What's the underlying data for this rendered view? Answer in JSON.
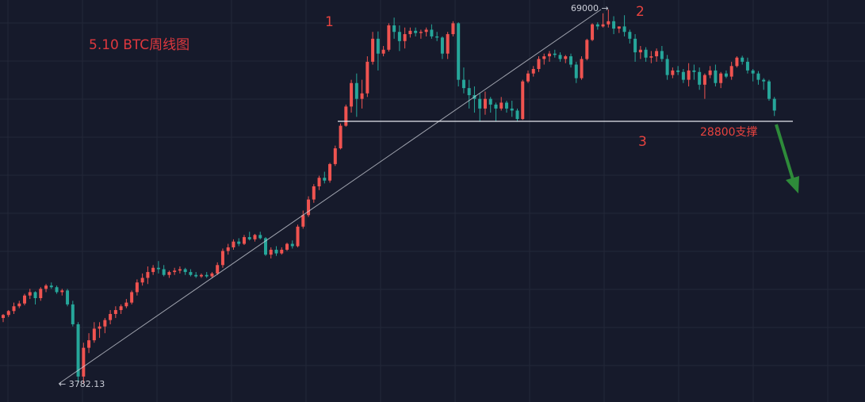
{
  "title": "5.10 BTC周线图",
  "annotations": {
    "wave1": "1",
    "wave2": "2",
    "wave3": "3",
    "support_text": "28800支撑",
    "high_label": "69000 →",
    "low_label": "← 3782.13"
  },
  "colors": {
    "background": "#161a2b",
    "grid": "#232838",
    "up": "#ef5350",
    "down": "#26a69a",
    "annotation": "#e8433f",
    "arrow": "#2e8b3a",
    "lines": "#cfd2db"
  },
  "chart_data": {
    "type": "candlestick",
    "title": "5.10 BTC周线图",
    "ylim": [
      3000,
      69500
    ],
    "grid": true,
    "candles": [
      [
        6300,
        6500,
        6100,
        6450
      ],
      [
        6450,
        6700,
        6350,
        6650
      ],
      [
        6650,
        7100,
        6500,
        6900
      ],
      [
        6900,
        7200,
        6800,
        7050
      ],
      [
        7050,
        7600,
        6950,
        7500
      ],
      [
        7500,
        7900,
        7300,
        7700
      ],
      [
        7700,
        7750,
        7000,
        7350
      ],
      [
        7350,
        8000,
        7200,
        7900
      ],
      [
        7900,
        8200,
        7700,
        8100
      ],
      [
        8100,
        8300,
        7900,
        8000
      ],
      [
        8000,
        8100,
        7600,
        7700
      ],
      [
        7700,
        7900,
        7500,
        7800
      ],
      [
        7800,
        7900,
        6900,
        7000
      ],
      [
        7000,
        7200,
        5900,
        6000
      ],
      [
        6000,
        6100,
        3800,
        4000
      ],
      [
        4000,
        5200,
        3782.13,
        5000
      ],
      [
        5000,
        5600,
        4800,
        5300
      ],
      [
        5300,
        6100,
        5200,
        5800
      ],
      [
        5800,
        6100,
        5400,
        5900
      ],
      [
        5900,
        6300,
        5600,
        6200
      ],
      [
        6200,
        6700,
        6000,
        6500
      ],
      [
        6500,
        6900,
        6300,
        6700
      ],
      [
        6700,
        7000,
        6500,
        6900
      ],
      [
        6900,
        7300,
        6800,
        7100
      ],
      [
        7100,
        7800,
        7000,
        7700
      ],
      [
        7700,
        8500,
        7500,
        8300
      ],
      [
        8300,
        8900,
        8100,
        8600
      ],
      [
        8600,
        9400,
        8200,
        9000
      ],
      [
        9000,
        9500,
        8800,
        9300
      ],
      [
        9300,
        9800,
        8900,
        9200
      ],
      [
        9200,
        9500,
        8700,
        8800
      ],
      [
        8800,
        9100,
        8600,
        9000
      ],
      [
        9000,
        9300,
        8800,
        9100
      ],
      [
        9100,
        9400,
        8900,
        9200
      ],
      [
        9200,
        9300,
        8800,
        9000
      ],
      [
        9000,
        9200,
        8700,
        8800
      ],
      [
        8800,
        9000,
        8600,
        8700
      ],
      [
        8700,
        8900,
        8600,
        8800
      ],
      [
        8800,
        9000,
        8600,
        8700
      ],
      [
        8700,
        9000,
        8600,
        8900
      ],
      [
        8900,
        9700,
        8800,
        9500
      ],
      [
        9500,
        10800,
        9300,
        10600
      ],
      [
        10600,
        11200,
        10300,
        10900
      ],
      [
        10900,
        11600,
        10700,
        11400
      ],
      [
        11400,
        11700,
        11000,
        11200
      ],
      [
        11200,
        12000,
        11100,
        11800
      ],
      [
        11800,
        12300,
        11500,
        11600
      ],
      [
        11600,
        12100,
        11400,
        12000
      ],
      [
        12000,
        12300,
        11600,
        11700
      ],
      [
        11700,
        11800,
        10200,
        10300
      ],
      [
        10300,
        10900,
        10000,
        10700
      ],
      [
        10700,
        11000,
        10200,
        10400
      ],
      [
        10400,
        10900,
        10300,
        10700
      ],
      [
        10700,
        11300,
        10600,
        11200
      ],
      [
        11200,
        11500,
        10800,
        11000
      ],
      [
        11000,
        13000,
        10900,
        12800
      ],
      [
        12800,
        14500,
        12600,
        14000
      ],
      [
        14000,
        16200,
        13800,
        15800
      ],
      [
        15800,
        17800,
        15400,
        17500
      ],
      [
        17500,
        19000,
        17000,
        18700
      ],
      [
        18700,
        19600,
        17900,
        18300
      ],
      [
        18300,
        21000,
        18000,
        20800
      ],
      [
        20800,
        24000,
        20500,
        23500
      ],
      [
        23500,
        28500,
        23300,
        28000
      ],
      [
        28000,
        33000,
        27800,
        32500
      ],
      [
        32500,
        40000,
        31000,
        39000
      ],
      [
        39000,
        42000,
        30000,
        34500
      ],
      [
        34500,
        40000,
        32000,
        36000
      ],
      [
        36000,
        48000,
        35000,
        46000
      ],
      [
        46000,
        58000,
        45000,
        55000
      ],
      [
        55000,
        58200,
        43000,
        49000
      ],
      [
        49000,
        52000,
        48000,
        50500
      ],
      [
        50500,
        62000,
        49800,
        61000
      ],
      [
        61000,
        64800,
        55000,
        58000
      ],
      [
        58000,
        61000,
        50000,
        54000
      ],
      [
        54000,
        60000,
        51000,
        57000
      ],
      [
        57000,
        60000,
        55500,
        58500
      ],
      [
        58500,
        60000,
        56000,
        57500
      ],
      [
        57500,
        59000,
        55000,
        58000
      ],
      [
        58000,
        60000,
        56000,
        59000
      ],
      [
        59000,
        61500,
        55000,
        56000
      ],
      [
        56000,
        58000,
        54000,
        55500
      ],
      [
        55500,
        56000,
        47000,
        49000
      ],
      [
        49000,
        58000,
        47000,
        57000
      ],
      [
        57000,
        63000,
        56000,
        62000
      ],
      [
        62000,
        62500,
        38000,
        40000
      ],
      [
        40000,
        44000,
        36000,
        37500
      ],
      [
        37500,
        40000,
        32000,
        35500
      ],
      [
        35500,
        38000,
        31000,
        34500
      ],
      [
        34500,
        36000,
        29000,
        32000
      ],
      [
        32000,
        36500,
        30500,
        34500
      ],
      [
        34500,
        35000,
        31000,
        33000
      ],
      [
        33000,
        33500,
        29000,
        32000
      ],
      [
        32000,
        35000,
        31500,
        33500
      ],
      [
        33500,
        34000,
        31000,
        32000
      ],
      [
        32000,
        34000,
        30000,
        31500
      ],
      [
        31500,
        32000,
        29000,
        29500
      ],
      [
        29500,
        40000,
        29300,
        39500
      ],
      [
        39500,
        43000,
        39000,
        42000
      ],
      [
        42000,
        44500,
        41000,
        43500
      ],
      [
        43500,
        48000,
        42500,
        47000
      ],
      [
        47000,
        49000,
        45000,
        48000
      ],
      [
        48000,
        50000,
        46000,
        49000
      ],
      [
        49000,
        50500,
        47500,
        48500
      ],
      [
        48500,
        49500,
        46000,
        47000
      ],
      [
        47000,
        48500,
        45500,
        48000
      ],
      [
        48000,
        49000,
        44000,
        45000
      ],
      [
        45000,
        46000,
        39000,
        40500
      ],
      [
        40500,
        48000,
        40000,
        47000
      ],
      [
        47000,
        55000,
        46500,
        54500
      ],
      [
        54500,
        62000,
        54000,
        61500
      ],
      [
        61500,
        62500,
        59000,
        60500
      ],
      [
        60500,
        67000,
        60000,
        61500
      ],
      [
        61500,
        69000,
        60000,
        63000
      ],
      [
        63000,
        65500,
        57000,
        59500
      ],
      [
        59500,
        60500,
        57500,
        60500
      ],
      [
        60500,
        66000,
        56000,
        58000
      ],
      [
        58000,
        59000,
        53000,
        55000
      ],
      [
        55000,
        57000,
        46000,
        49500
      ],
      [
        49500,
        52000,
        47000,
        50500
      ],
      [
        50500,
        51500,
        46000,
        47500
      ],
      [
        47500,
        50000,
        45500,
        48000
      ],
      [
        48000,
        51000,
        46000,
        50000
      ],
      [
        50000,
        52000,
        46000,
        47000
      ],
      [
        47000,
        48500,
        40000,
        41500
      ],
      [
        41500,
        44000,
        40500,
        43000
      ],
      [
        43000,
        44500,
        41500,
        42500
      ],
      [
        42500,
        43500,
        39000,
        40000
      ],
      [
        40000,
        45500,
        38000,
        43000
      ],
      [
        43000,
        45000,
        40000,
        42500
      ],
      [
        42500,
        44000,
        37000,
        38500
      ],
      [
        38500,
        42000,
        34500,
        41500
      ],
      [
        41500,
        44500,
        40500,
        43000
      ],
      [
        43000,
        45000,
        38000,
        39000
      ],
      [
        39000,
        42500,
        37500,
        42000
      ],
      [
        42000,
        43000,
        40500,
        41000
      ],
      [
        41000,
        46000,
        40000,
        44500
      ],
      [
        44500,
        48000,
        44000,
        47500
      ],
      [
        47500,
        48200,
        45000,
        46000
      ],
      [
        46000,
        47500,
        42000,
        43000
      ],
      [
        43000,
        43500,
        39500,
        42000
      ],
      [
        42000,
        42800,
        38500,
        40000
      ],
      [
        40000,
        40500,
        37000,
        39500
      ],
      [
        39500,
        40000,
        34000,
        34500
      ],
      [
        34500,
        35000,
        30200,
        31500
      ]
    ]
  }
}
